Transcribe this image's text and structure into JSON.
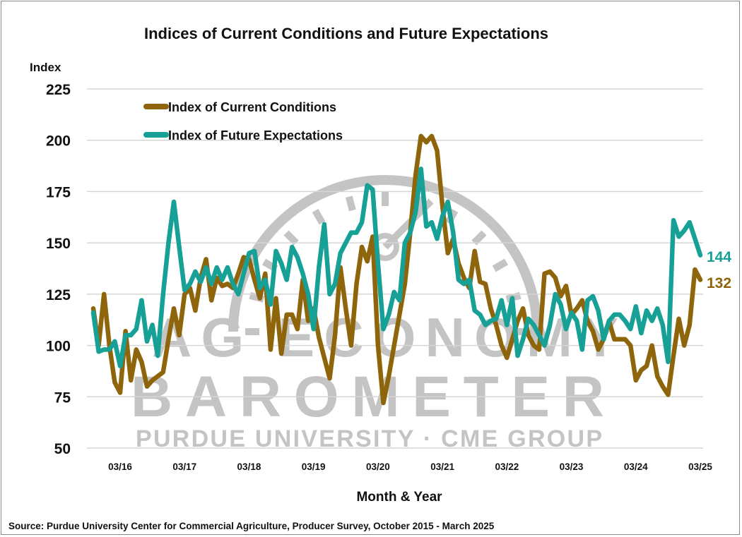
{
  "chart_data": {
    "type": "line",
    "title": "Indices of Current Conditions and Future Expectations",
    "ylabel": "Index",
    "xlabel": "Month & Year",
    "ylim": [
      50,
      225
    ],
    "yticks": [
      "50",
      "75",
      "100",
      "125",
      "150",
      "175",
      "200",
      "225"
    ],
    "xticks": [
      "03/16",
      "03/17",
      "03/18",
      "03/19",
      "03/20",
      "03/21",
      "03/22",
      "03/23",
      "03/24",
      "03/25"
    ],
    "x_start": "2015-10",
    "x_end": "2025-03",
    "grid": "horizontal",
    "legend_position": "top-left",
    "series": [
      {
        "name": "Index of Current Conditions",
        "color": "#8f650c",
        "end_label": "132",
        "values": [
          118,
          100,
          125,
          100,
          82,
          77,
          107,
          83,
          98,
          92,
          80,
          83,
          85,
          87,
          103,
          118,
          105,
          125,
          128,
          117,
          133,
          142,
          122,
          133,
          129,
          130,
          128,
          135,
          143,
          142,
          132,
          123,
          135,
          98,
          123,
          96,
          115,
          115,
          108,
          132,
          112,
          118,
          104,
          94,
          84,
          105,
          138,
          118,
          100,
          130,
          148,
          141,
          153,
          100,
          72,
          85,
          100,
          115,
          130,
          155,
          183,
          202,
          199,
          202,
          195,
          168,
          145,
          152,
          140,
          133,
          128,
          146,
          131,
          130,
          118,
          110,
          100,
          94,
          103,
          112,
          118,
          105,
          100,
          98,
          135,
          136,
          133,
          124,
          129,
          115,
          118,
          122,
          112,
          107,
          98,
          103,
          112,
          103,
          103,
          103,
          100,
          83,
          88,
          90,
          100,
          85,
          80,
          76,
          95,
          113,
          100,
          110,
          137,
          132
        ]
      },
      {
        "name": "Index of Future Expectations",
        "color": "#16a096",
        "end_label": "144",
        "values": [
          116,
          97,
          98,
          98,
          102,
          90,
          105,
          105,
          108,
          122,
          102,
          110,
          95,
          125,
          150,
          170,
          148,
          127,
          130,
          136,
          131,
          138,
          130,
          138,
          132,
          138,
          130,
          125,
          135,
          145,
          146,
          128,
          132,
          120,
          146,
          140,
          132,
          148,
          143,
          135,
          125,
          108,
          138,
          159,
          125,
          130,
          145,
          150,
          155,
          155,
          160,
          178,
          176,
          140,
          108,
          115,
          126,
          122,
          150,
          155,
          165,
          186,
          158,
          160,
          152,
          163,
          170,
          155,
          132,
          130,
          132,
          117,
          115,
          110,
          112,
          113,
          122,
          110,
          123,
          95,
          103,
          113,
          110,
          105,
          100,
          110,
          125,
          120,
          108,
          116,
          112,
          98,
          122,
          124,
          117,
          103,
          112,
          115,
          115,
          112,
          108,
          119,
          106,
          117,
          112,
          118,
          110,
          92,
          161,
          153,
          156,
          160,
          152,
          144
        ]
      }
    ],
    "source": "Source: Purdue University Center for Commercial Agriculture, Producer Survey, October 2015 - March 2025"
  },
  "watermark": {
    "line1": "AG ECONOMY",
    "line2": "BAROMETER",
    "line3": "PURDUE UNIVERSITY  ·  CME GROUP",
    "color": "#c4c4c4"
  }
}
